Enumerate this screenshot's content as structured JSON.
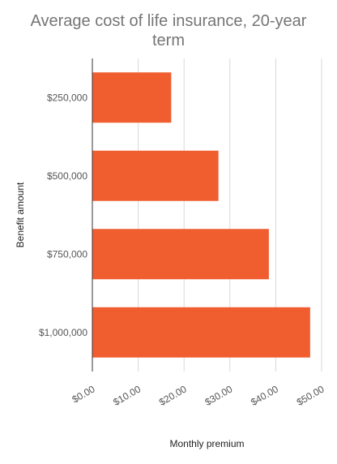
{
  "chart_data": {
    "type": "bar",
    "orientation": "horizontal",
    "title": "Average cost of life insurance, 20-year term",
    "xlabel": "Monthly premium",
    "ylabel": "Benefit amount",
    "categories": [
      "$250,000",
      "$500,000",
      "$750,000",
      "$1,000,000"
    ],
    "values": [
      17.2,
      27.5,
      38.5,
      47.5
    ],
    "xlim": [
      0,
      50
    ],
    "x_ticks": [
      "$0.00",
      "$10.00",
      "$20.00",
      "$30.00",
      "$40.00",
      "$50.00"
    ],
    "grid": true,
    "legend": "none",
    "bar_color": "#F05E30"
  }
}
